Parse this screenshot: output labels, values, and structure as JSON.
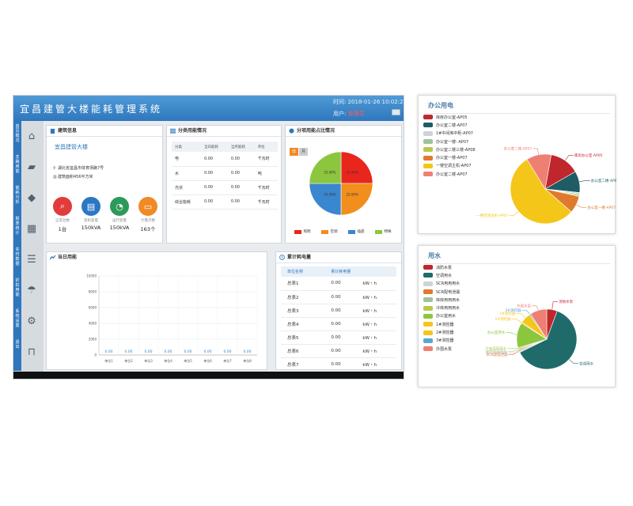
{
  "app": {
    "title": "宜昌建管大楼能耗管理系统",
    "time_label": "时间:",
    "time_value": "2018-01-26 10:02:27",
    "user_label": "用户:",
    "user_value": "管理员"
  },
  "sidebar": {
    "items": [
      {
        "label": "首页概况",
        "icon": "home-icon"
      },
      {
        "label": "支路用能",
        "icon": "book-icon"
      },
      {
        "label": "能耗分析",
        "icon": "cube-icon"
      },
      {
        "label": "报表统计",
        "icon": "calendar-icon"
      },
      {
        "label": "实时数据",
        "icon": "chat-icon"
      },
      {
        "label": "折扣用能",
        "icon": "umbrella-icon"
      },
      {
        "label": "系统设置",
        "icon": "gear-icon"
      },
      {
        "label": "退出",
        "icon": "lock-icon"
      }
    ]
  },
  "building": {
    "panel_title": "建筑信息",
    "name": "宜昌建管大楼",
    "address": "湖北省宜昌市体育场路7号",
    "area": "建筑面积456平方米",
    "stats": [
      {
        "label": "正常台数",
        "value": "1台",
        "color": "#e23b3b",
        "icon": "search-icon"
      },
      {
        "label": "装机容量",
        "value": "150kVA",
        "color": "#2a77c4",
        "icon": "document-icon"
      },
      {
        "label": "运行容量",
        "value": "150kVA",
        "color": "#2c9a5a",
        "icon": "chart-icon"
      },
      {
        "label": "计量点数",
        "value": "163个",
        "color": "#ef8a25",
        "icon": "monitor-icon"
      }
    ]
  },
  "category": {
    "panel_title": "分类用能情况",
    "headers": [
      "分类",
      "当日能耗",
      "当月能耗",
      "单位"
    ],
    "rows": [
      [
        "电",
        "0.00",
        "0.00",
        "千瓦时"
      ],
      [
        "水",
        "0.00",
        "0.00",
        "吨"
      ],
      [
        "光伏",
        "0.00",
        "0.00",
        "千瓦时"
      ],
      [
        "综合能耗",
        "0.00",
        "0.00",
        "千瓦时"
      ]
    ]
  },
  "ratio": {
    "panel_title": "分项用能占比情况",
    "buttons": [
      "日",
      "月"
    ],
    "slices": [
      {
        "name": "照明",
        "value": 25.0,
        "label": "25.00%",
        "color": "#e8261c"
      },
      {
        "name": "空调",
        "value": 25.0,
        "label": "25.00%",
        "color": "#f18e1c"
      },
      {
        "name": "插座",
        "value": 25.0,
        "label": "25.00%",
        "color": "#3a86cf"
      },
      {
        "name": "特殊",
        "value": 25.0,
        "label": "25.00%",
        "color": "#8cc63f"
      }
    ]
  },
  "today": {
    "panel_title": "当日用能",
    "icons": [
      {
        "name": "lightning-icon",
        "color": "#ef8a25"
      },
      {
        "name": "water-drop-icon",
        "color": "#9ea6ad"
      },
      {
        "name": "building-icon",
        "color": "#9ea6ad"
      }
    ],
    "chart_data": {
      "type": "bar",
      "categories": [
        "单位1",
        "单位2",
        "单位3",
        "单位4",
        "单位5",
        "单位6",
        "单位7",
        "单位8"
      ],
      "values": [
        0,
        0,
        0,
        0,
        0,
        0,
        0,
        0
      ],
      "value_labels": [
        "0.00",
        "0.00",
        "0.00",
        "0.00",
        "0.00",
        "0.00",
        "0.00",
        "0.00"
      ],
      "yticks": [
        "10000",
        "8000",
        "6000",
        "4000",
        "2000",
        "0"
      ],
      "ylim": [
        0,
        10000
      ],
      "grid": true
    }
  },
  "accumulated": {
    "panel_title": "累计耗电量",
    "headers": [
      "单位名称",
      "累计耗电量"
    ],
    "rows": [
      [
        "总表1",
        "0.00",
        "kW・h"
      ],
      [
        "总表2",
        "0.00",
        "kW・h"
      ],
      [
        "总表3",
        "0.00",
        "kW・h"
      ],
      [
        "总表4",
        "0.00",
        "kW・h"
      ],
      [
        "总表5",
        "0.00",
        "kW・h"
      ],
      [
        "总表6",
        "0.00",
        "kW・h"
      ],
      [
        "总表7",
        "0.00",
        "kW・h"
      ]
    ]
  },
  "office_power": {
    "title": "办公用电",
    "chart_data": {
      "type": "pie",
      "series": [
        {
          "name": "库房办公室-AP05",
          "value": 14,
          "color": "#c0272d"
        },
        {
          "name": "办公室二楼-AP07",
          "value": 10,
          "color": "#1f5c63"
        },
        {
          "name": "1#中间库中柜-AP07",
          "value": 0.6,
          "color": "#cdd3d8"
        },
        {
          "name": "办公室一楼- AP07",
          "value": 0.6,
          "color": "#9ec39a"
        },
        {
          "name": "办公室二楼三楼-AP08",
          "value": 0.6,
          "color": "#b8c94a"
        },
        {
          "name": "办公室一楼-AP07",
          "value": 8,
          "color": "#e07a2d"
        },
        {
          "name": "一楼空调主机-AP07",
          "value": 55,
          "color": "#f4c61a"
        },
        {
          "name": "办公室二楼-AP07",
          "value": 11.6,
          "color": "#ef7f73"
        }
      ]
    }
  },
  "water": {
    "title": "用水",
    "chart_data": {
      "type": "pie",
      "series": [
        {
          "name": "消防水泵",
          "value": 5,
          "color": "#c0272d"
        },
        {
          "name": "空调用水",
          "value": 55,
          "color": "#1f6b6c"
        },
        {
          "name": "SCR用用用水",
          "value": 0.6,
          "color": "#cdd3d8"
        },
        {
          "name": "SCR配电泄漏",
          "value": 0.6,
          "color": "#e07a2d"
        },
        {
          "name": "库房用用用水",
          "value": 0.6,
          "color": "#9ec39a"
        },
        {
          "name": "冷库用用用水",
          "value": 0.6,
          "color": "#b8c94a"
        },
        {
          "name": "办公室用水",
          "value": 12,
          "color": "#8cc63f"
        },
        {
          "name": "1#测控器",
          "value": 0.6,
          "color": "#f4c61a"
        },
        {
          "name": "2#测控器",
          "value": 5,
          "color": "#f4c61a"
        },
        {
          "name": "3#测控器",
          "value": 0.6,
          "color": "#58a6d6"
        },
        {
          "name": "外围水泵",
          "value": 8,
          "color": "#ef7f73"
        }
      ],
      "slice_labels": [
        {
          "name": "消防水泵"
        },
        {
          "name": "空调用水"
        },
        {
          "name": "外围水泵"
        },
        {
          "name": "冷库用用用水"
        },
        {
          "name": "2#测控器"
        },
        {
          "name": "3#测控器"
        },
        {
          "name": "办公室用水"
        },
        {
          "name": "库房用用用水"
        },
        {
          "name": "SCR配电泄漏"
        },
        {
          "name": "SCR用用用水"
        },
        {
          "name": "1#测控器"
        }
      ]
    }
  }
}
